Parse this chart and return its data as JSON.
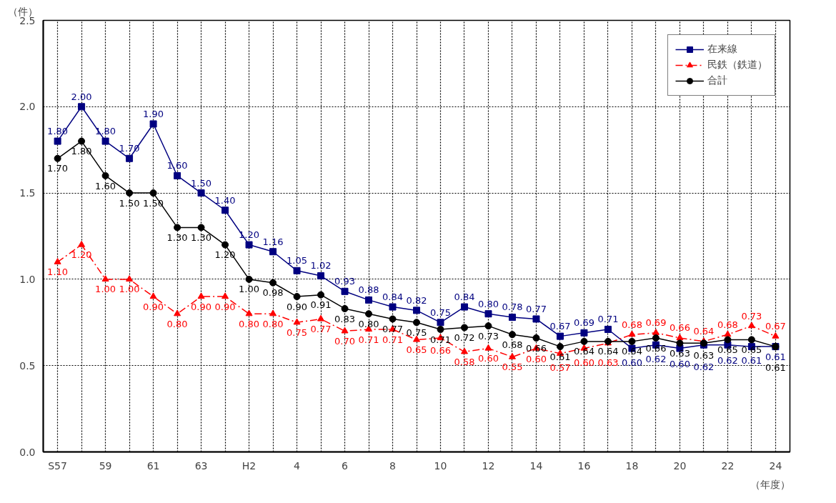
{
  "chart_data": {
    "type": "line",
    "xlabel": "（年度）",
    "ylabel": "（件）",
    "categories": [
      "S57",
      null,
      "59",
      null,
      "61",
      null,
      "63",
      null,
      "H2",
      null,
      "4",
      null,
      "6",
      null,
      "8",
      null,
      "10",
      null,
      "12",
      null,
      "14",
      null,
      "16",
      null,
      "18",
      null,
      "20",
      null,
      "22",
      null,
      "24"
    ],
    "ylim": [
      0,
      2.5
    ],
    "yticks": [
      {
        "value": 0,
        "label": "0.0"
      },
      0.5,
      {
        "value": 1,
        "label": "1.0"
      },
      1.5,
      {
        "value": 2,
        "label": "2.0"
      },
      2.5
    ],
    "grid": true,
    "legend": "top right",
    "series": [
      {
        "name": "在来線",
        "color": "#000080",
        "marker": "square",
        "line_style": "solid",
        "values": [
          1.8,
          2.0,
          1.8,
          1.7,
          1.9,
          1.6,
          1.5,
          1.4,
          1.2,
          1.16,
          1.05,
          1.02,
          0.93,
          0.88,
          0.84,
          0.82,
          0.75,
          0.84,
          0.8,
          0.78,
          0.77,
          0.67,
          0.69,
          0.71,
          0.6,
          0.62,
          0.6,
          0.62,
          0.62,
          0.61,
          0.61
        ],
        "value_labels": [
          "1.80",
          "2.00",
          "1.80",
          "1.70",
          "1.90",
          "1.60",
          "1.50",
          "1.40",
          "1.20",
          "1.16",
          "1.05",
          "1.02",
          "0.93",
          "0.88",
          "0.84",
          "0.82",
          "0.75",
          "0.84",
          "0.80",
          "0.78",
          "0.77",
          "0.67",
          "0.69",
          "0.71",
          "0.60",
          "0.62",
          "0.60",
          "0.62",
          "0.62",
          "0.61",
          "0.61"
        ]
      },
      {
        "name": "民鉄（鉄道）",
        "color": "#ff0000",
        "marker": "triangle",
        "line_style": "dashed",
        "values": [
          1.1,
          1.2,
          1.0,
          1.0,
          0.9,
          0.8,
          0.9,
          0.9,
          0.8,
          0.8,
          0.75,
          0.77,
          0.7,
          0.71,
          0.71,
          0.65,
          0.66,
          0.58,
          0.6,
          0.55,
          0.6,
          0.57,
          0.6,
          0.63,
          0.68,
          0.69,
          0.66,
          0.64,
          0.68,
          0.73,
          0.67
        ],
        "value_labels": [
          "1.10",
          "1.20",
          "1.00",
          "1.00",
          "0.90",
          "0.80",
          "0.90",
          "0.90",
          "0.80",
          "0.80",
          "0.75",
          "0.77",
          "0.70",
          "0.71",
          "0.71",
          "0.65",
          "0.66",
          "0.58",
          "0.60",
          "0.55",
          "0.60",
          "0.57",
          "0.60",
          "0.63",
          "0.68",
          "0.69",
          "0.66",
          "0.64",
          "0.68",
          "0.73",
          "0.67"
        ]
      },
      {
        "name": "合計",
        "color": "#000000",
        "marker": "circle",
        "line_style": "solid",
        "values": [
          1.7,
          1.8,
          1.6,
          1.5,
          1.5,
          1.3,
          1.3,
          1.2,
          1.0,
          0.98,
          0.9,
          0.91,
          0.83,
          0.8,
          0.77,
          0.75,
          0.71,
          0.72,
          0.73,
          0.68,
          0.66,
          0.61,
          0.64,
          0.64,
          0.64,
          0.66,
          0.63,
          0.63,
          0.65,
          0.65,
          0.61
        ],
        "value_labels": [
          "1.70",
          "1.80",
          "1.60",
          "1.50",
          "1.50",
          "1.30",
          "1.30",
          "1.20",
          "1.00",
          "0.98",
          "0.90",
          "0.91",
          "0.83",
          "0.80",
          "0.77",
          "0.75",
          "0.71",
          "0.72",
          "0.73",
          "0.68",
          "0.66",
          "0.61",
          "0.64",
          "0.64",
          "0.64",
          "0.66",
          "0.63",
          "0.63",
          "0.65",
          "0.65",
          "0.61"
        ]
      }
    ]
  }
}
